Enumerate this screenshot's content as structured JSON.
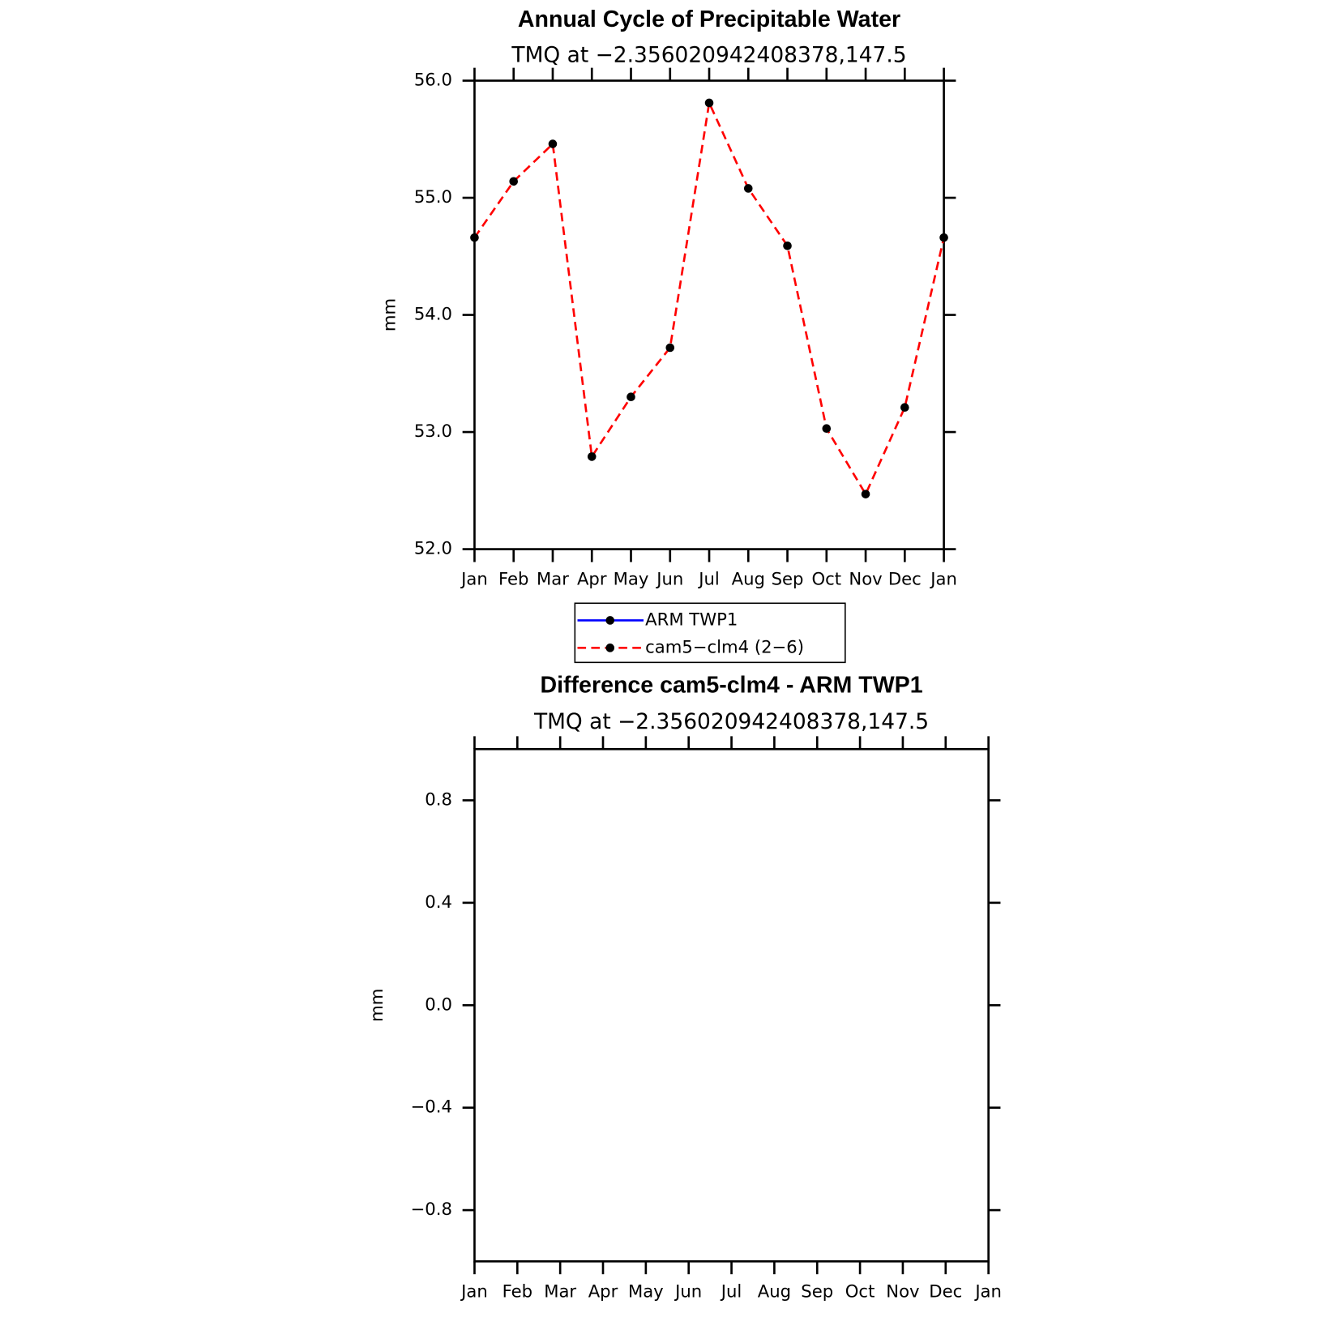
{
  "chart_data": [
    {
      "type": "line",
      "title": "Annual Cycle of Precipitable Water",
      "subtitle": "TMQ at −2.356020942408378,147.5",
      "y_label": "mm",
      "categories": [
        "Jan",
        "Feb",
        "Mar",
        "Apr",
        "May",
        "Jun",
        "Jul",
        "Aug",
        "Sep",
        "Oct",
        "Nov",
        "Dec",
        "Jan"
      ],
      "series": [
        {
          "name": "ARM TWP1",
          "color": "#0000ff",
          "dashed": false,
          "values": [
            null,
            null,
            null,
            null,
            null,
            null,
            null,
            null,
            null,
            null,
            null,
            null,
            null
          ]
        },
        {
          "name": "cam5−clm4 (2−6)",
          "color": "#ff0000",
          "dashed": true,
          "values": [
            54.66,
            55.14,
            55.46,
            52.79,
            53.3,
            53.72,
            55.81,
            55.08,
            54.59,
            53.03,
            52.47,
            53.21,
            54.66
          ]
        }
      ],
      "marker_color": "#000000",
      "ylim": [
        52,
        56
      ],
      "yticks": [
        {
          "value": 52,
          "label": "52.0"
        },
        {
          "value": 53,
          "label": "53.0"
        },
        {
          "value": 54,
          "label": "54.0"
        },
        {
          "value": 55,
          "label": "55.0"
        },
        {
          "value": 56,
          "label": "56.0"
        }
      ],
      "grid": false,
      "legend": "bottom"
    },
    {
      "type": "line",
      "title": "Difference cam5-clm4 - ARM TWP1",
      "subtitle": "TMQ at −2.356020942408378,147.5",
      "y_label": "mm",
      "categories": [
        "Jan",
        "Feb",
        "Mar",
        "Apr",
        "May",
        "Jun",
        "Jul",
        "Aug",
        "Sep",
        "Oct",
        "Nov",
        "Dec",
        "Jan"
      ],
      "series": [],
      "ylim": [
        -1,
        1
      ],
      "yticks": [
        {
          "value": -0.8,
          "label": "−0.8"
        },
        {
          "value": -0.4,
          "label": "−0.4"
        },
        {
          "value": 0,
          "label": "0.0"
        },
        {
          "value": 0.4,
          "label": "0.4"
        },
        {
          "value": 0.8,
          "label": "0.8"
        }
      ],
      "grid": false
    }
  ]
}
